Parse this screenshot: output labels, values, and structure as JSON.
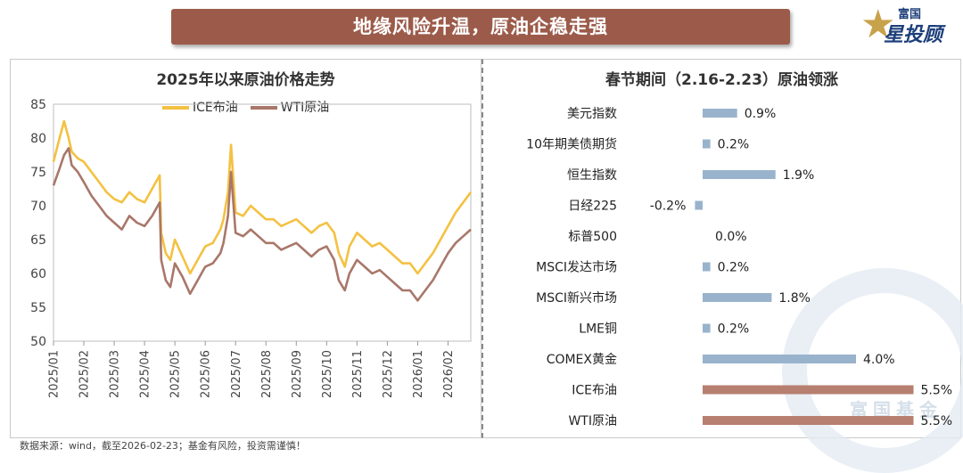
{
  "banner": {
    "title": "地缘风险升温，原油企稳走强"
  },
  "logo": {
    "top": "富国",
    "main": "星投顾"
  },
  "watermark": {
    "text": "富国基金"
  },
  "source": "数据来源：wind，截至2026-02-23；基金有风险，投资需谨慎！",
  "colors": {
    "ice": "#f4c141",
    "wti": "#a9776a",
    "bar_blue": "#99b3cc",
    "bar_brown": "#b77f70"
  },
  "chart_data": [
    {
      "type": "line",
      "title": "2025年以来原油价格走势",
      "ylim": [
        50,
        85
      ],
      "yticks": [
        "50",
        "55",
        "60",
        "65",
        "70",
        "75",
        "80",
        "85"
      ],
      "x_tick_labels": [
        "2025/01",
        "2025/02",
        "2025/03",
        "2025/04",
        "2025/05",
        "2025/06",
        "2025/07",
        "2025/08",
        "2025/09",
        "2025/10",
        "2025/11",
        "2025/12",
        "2026/01",
        "2026/02"
      ],
      "x_range": [
        0,
        13.75
      ],
      "series": [
        {
          "name": "ICE布油",
          "x": [
            0,
            0.2,
            0.35,
            0.5,
            0.6,
            0.8,
            1.0,
            1.25,
            1.5,
            1.75,
            2.0,
            2.25,
            2.5,
            2.75,
            3.0,
            3.25,
            3.5,
            3.55,
            3.7,
            3.85,
            4.0,
            4.25,
            4.5,
            4.75,
            5.0,
            5.25,
            5.5,
            5.6,
            5.75,
            5.85,
            6.0,
            6.25,
            6.5,
            6.75,
            7.0,
            7.25,
            7.5,
            7.75,
            8.0,
            8.25,
            8.5,
            8.75,
            9.0,
            9.25,
            9.4,
            9.6,
            9.75,
            10.0,
            10.25,
            10.5,
            10.75,
            11.0,
            11.25,
            11.5,
            11.75,
            12.0,
            12.25,
            12.5,
            12.75,
            13.0,
            13.25,
            13.5,
            13.75
          ],
          "values": [
            76.5,
            80,
            82.5,
            80,
            78,
            77,
            76.5,
            75,
            73.5,
            72,
            71,
            70.5,
            72,
            71,
            70.5,
            72.5,
            74.5,
            66,
            63,
            62,
            65,
            62.5,
            60,
            62,
            64,
            64.5,
            66.5,
            68,
            72,
            79,
            69,
            68.5,
            70,
            69,
            68,
            68,
            67,
            67.5,
            68,
            67,
            66,
            67,
            67.5,
            66,
            63,
            61,
            64,
            66,
            65,
            64,
            64.5,
            63.5,
            62.5,
            61.5,
            61.5,
            60,
            61.5,
            63,
            65,
            67,
            69,
            70.5,
            72
          ]
        },
        {
          "name": "WTI原油",
          "x": [
            0,
            0.2,
            0.35,
            0.5,
            0.6,
            0.8,
            1.0,
            1.25,
            1.5,
            1.75,
            2.0,
            2.25,
            2.5,
            2.75,
            3.0,
            3.25,
            3.5,
            3.55,
            3.7,
            3.85,
            4.0,
            4.25,
            4.5,
            4.75,
            5.0,
            5.25,
            5.5,
            5.6,
            5.75,
            5.85,
            6.0,
            6.25,
            6.5,
            6.75,
            7.0,
            7.25,
            7.5,
            7.75,
            8.0,
            8.25,
            8.5,
            8.75,
            9.0,
            9.25,
            9.4,
            9.6,
            9.75,
            10.0,
            10.25,
            10.5,
            10.75,
            11.0,
            11.25,
            11.5,
            11.75,
            12.0,
            12.25,
            12.5,
            12.75,
            13.0,
            13.25,
            13.5,
            13.75
          ],
          "values": [
            73,
            75.5,
            77.5,
            78.5,
            76,
            75,
            73.5,
            71.5,
            70,
            68.5,
            67.5,
            66.5,
            68.5,
            67.5,
            67,
            68.5,
            70.5,
            62,
            59,
            58,
            61.5,
            59.5,
            57,
            59,
            61,
            61.5,
            63,
            64.5,
            68.5,
            75,
            66,
            65.5,
            66.5,
            65.5,
            64.5,
            64.5,
            63.5,
            64,
            64.5,
            63.5,
            62.5,
            63.5,
            64,
            62,
            59,
            57.5,
            60,
            62,
            61,
            60,
            60.5,
            59.5,
            58.5,
            57.5,
            57.5,
            56,
            57.5,
            59,
            61,
            63,
            64.5,
            65.5,
            66.5
          ]
        }
      ]
    },
    {
      "type": "bar",
      "orientation": "horizontal",
      "title": "春节期间（2.16-2.23）原油领涨",
      "unit": "%",
      "categories": [
        "美元指数",
        "10年期美债期货",
        "恒生指数",
        "日经225",
        "标普500",
        "MSCI发达市场",
        "MSCI新兴市场",
        "LME铜",
        "COMEX黄金",
        "ICE布油",
        "WTI原油"
      ],
      "values": [
        0.9,
        0.2,
        1.9,
        -0.2,
        0.0,
        0.2,
        1.8,
        0.2,
        4.0,
        5.5,
        5.5
      ],
      "labels": [
        "0.9%",
        "0.2%",
        "1.9%",
        "-0.2%",
        "0.0%",
        "0.2%",
        "1.8%",
        "0.2%",
        "4.0%",
        "5.5%",
        "5.5%"
      ],
      "highlight": [
        "ICE布油",
        "WTI原油"
      ]
    }
  ]
}
